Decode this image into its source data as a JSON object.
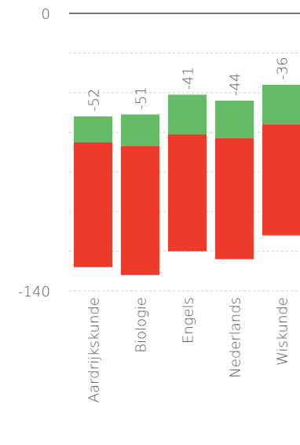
{
  "chart_data": {
    "type": "floating-stacked-bar",
    "categories": [
      "Aardrijkskunde",
      "Biologie",
      "Engels",
      "Nederlands",
      "Wiskunde"
    ],
    "start": [
      -52,
      -51,
      -41,
      -44,
      -36
    ],
    "series": [
      {
        "color": "#66bb66",
        "values": [
          -13,
          -16,
          -20,
          -19,
          -20
        ]
      },
      {
        "color": "#ee3b2b",
        "values": [
          -63,
          -65,
          -59,
          -61,
          -56
        ]
      }
    ],
    "ylim": [
      0,
      -140
    ],
    "yticks": [
      0,
      -140
    ],
    "minor_yticks": [
      -20,
      -40,
      -60,
      -80,
      -100,
      -120
    ],
    "grid": true
  }
}
